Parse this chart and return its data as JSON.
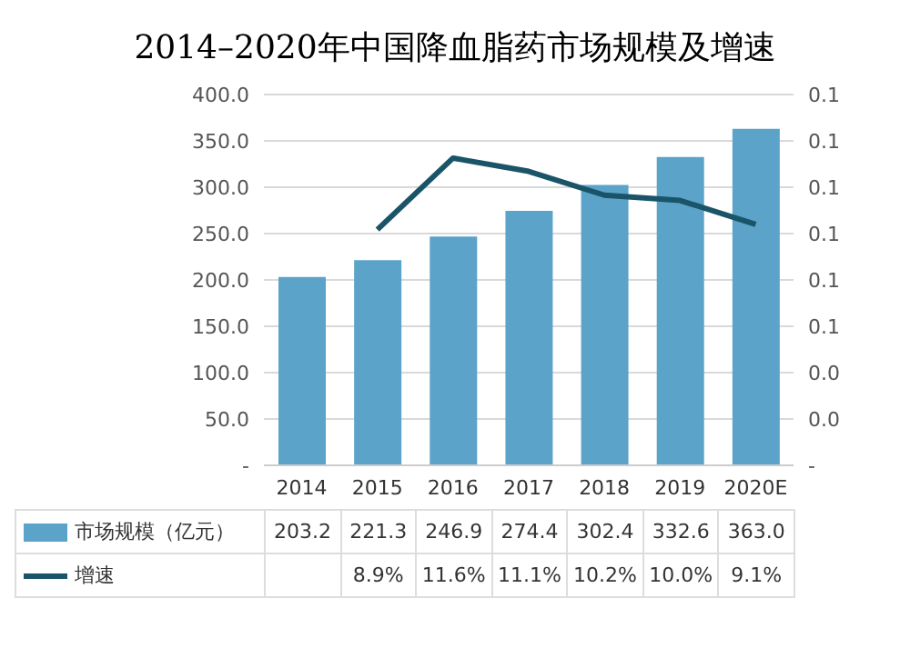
{
  "chart_data": {
    "type": "bar",
    "title": "2014–2020年中国降血脂药市场规模及增速",
    "categories": [
      "2014",
      "2015",
      "2016",
      "2017",
      "2018",
      "2019",
      "2020E"
    ],
    "series": [
      {
        "name": "市场规模（亿元）",
        "type": "bar",
        "color": "#5ba3c9",
        "values": [
          203.2,
          221.3,
          246.9,
          274.4,
          302.4,
          332.6,
          363.0
        ],
        "value_labels": [
          "203.2",
          "221.3",
          "246.9",
          "274.4",
          "302.4",
          "332.6",
          "363.0"
        ]
      },
      {
        "name": "增速",
        "type": "line",
        "axis": "y2",
        "color": "#1a5468",
        "values": [
          null,
          0.089,
          0.116,
          0.111,
          0.102,
          0.1,
          0.091
        ],
        "value_labels": [
          null,
          "8.9%",
          "11.6%",
          "11.1%",
          "10.2%",
          "10.0%",
          "9.1%"
        ]
      }
    ],
    "ylim": [
      0,
      400
    ],
    "yticks": [
      {
        "value": 0,
        "label": "-"
      },
      {
        "value": 50,
        "label": "50.0"
      },
      {
        "value": 100,
        "label": "100.0"
      },
      {
        "value": 150,
        "label": "150.0"
      },
      {
        "value": 200,
        "label": "200.0"
      },
      {
        "value": 250,
        "label": "250.0"
      },
      {
        "value": 300,
        "label": "300.0"
      },
      {
        "value": 350,
        "label": "350.0"
      },
      {
        "value": 400,
        "label": "400.0"
      }
    ],
    "y2lim": [
      0,
      0.14
    ],
    "y2ticks": [
      {
        "value": 0,
        "label": "-"
      },
      {
        "value": 0.0175,
        "label": "0.0"
      },
      {
        "value": 0.035,
        "label": "0.0"
      },
      {
        "value": 0.0525,
        "label": "0.1"
      },
      {
        "value": 0.07,
        "label": "0.1"
      },
      {
        "value": 0.0875,
        "label": "0.1"
      },
      {
        "value": 0.105,
        "label": "0.1"
      },
      {
        "value": 0.1225,
        "label": "0.1"
      },
      {
        "value": 0.14,
        "label": "0.1"
      }
    ],
    "grid": "y",
    "legend": "bottom",
    "marker": "none",
    "line_style": "solid"
  }
}
